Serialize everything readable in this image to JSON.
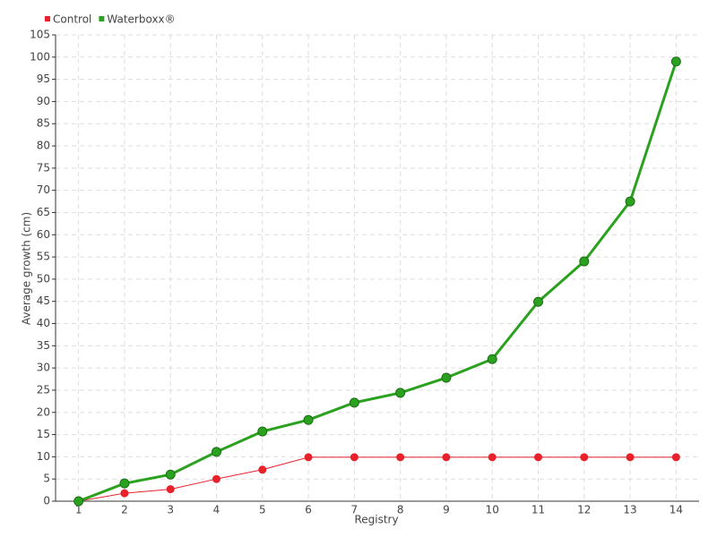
{
  "chart_data": {
    "type": "line",
    "x_label": "Registry",
    "y_label": "Average growth (cm)",
    "categories": [
      "1",
      "2",
      "3",
      "4",
      "5",
      "6",
      "7",
      "8",
      "9",
      "10",
      "11",
      "12",
      "13",
      "14"
    ],
    "series": [
      {
        "name": "Control",
        "color": "#e8212b",
        "values": [
          0,
          1.8,
          2.7,
          5,
          7.1,
          9.9,
          9.9,
          9.9,
          9.9,
          9.9,
          9.9,
          9.9,
          9.9,
          9.9
        ]
      },
      {
        "name": "Waterboxx®",
        "color": "#2aa11f",
        "values": [
          0,
          4,
          6,
          11.1,
          15.7,
          18.3,
          22.2,
          24.4,
          27.8,
          32,
          44.9,
          54,
          67.5,
          99
        ]
      }
    ],
    "ylim": [
      0,
      105
    ],
    "yticks": [
      0,
      5,
      10,
      15,
      20,
      25,
      30,
      35,
      40,
      45,
      50,
      55,
      60,
      65,
      70,
      75,
      80,
      85,
      90,
      95,
      100,
      105
    ],
    "grid": true,
    "legend": "top-left"
  }
}
